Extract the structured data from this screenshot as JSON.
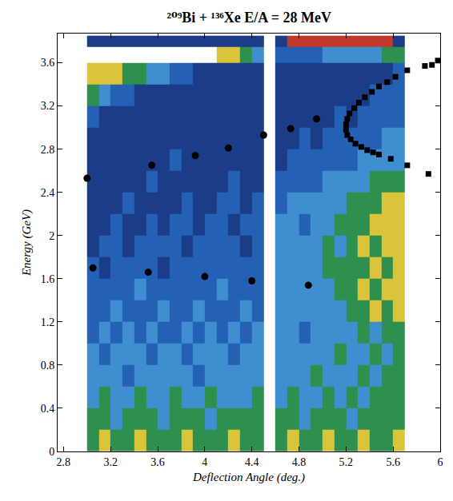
{
  "chart_data": {
    "type": "heatmap",
    "title": "²⁰⁹Bi + ¹³⁶Xe E/A = 28 MeV",
    "x_label": "Deflection Angle (deg.)",
    "y_label": "Energy (GeV)",
    "x": [
      3.05,
      3.15,
      3.25,
      3.35,
      3.45,
      3.55,
      3.65,
      3.75,
      3.85,
      3.95,
      4.05,
      4.15,
      4.25,
      4.35,
      4.45,
      4.55,
      4.65,
      4.75,
      4.85,
      4.95,
      5.05,
      5.15,
      5.25,
      5.35,
      5.45,
      5.55,
      5.65
    ],
    "y": [
      0.1,
      0.3,
      0.5,
      0.7,
      0.9,
      1.1,
      1.3,
      1.5,
      1.7,
      1.9,
      2.1,
      2.3,
      2.5,
      2.7,
      2.9,
      3.1,
      3.3,
      3.5,
      3.7,
      3.8
    ],
    "z": [
      [
        2,
        1,
        2,
        2,
        1,
        2,
        2,
        2,
        1,
        2,
        2,
        2,
        1,
        2,
        2,
        null,
        2,
        1,
        2,
        2,
        1,
        2,
        2,
        1,
        2,
        2,
        1
      ],
      [
        2,
        2,
        3,
        2,
        2,
        2,
        3,
        2,
        2,
        2,
        3,
        2,
        2,
        2,
        2,
        null,
        2,
        2,
        3,
        2,
        2,
        2,
        3,
        2,
        2,
        2,
        2
      ],
      [
        3,
        2,
        3,
        3,
        2,
        3,
        3,
        2,
        3,
        3,
        2,
        3,
        3,
        3,
        2,
        null,
        3,
        2,
        3,
        3,
        2,
        3,
        2,
        3,
        2,
        2,
        2
      ],
      [
        3,
        3,
        3,
        4,
        3,
        3,
        3,
        3,
        3,
        4,
        3,
        3,
        3,
        3,
        3,
        null,
        3,
        3,
        3,
        2,
        3,
        3,
        3,
        2,
        3,
        2,
        2
      ],
      [
        3,
        4,
        3,
        3,
        3,
        4,
        3,
        3,
        4,
        3,
        3,
        3,
        4,
        3,
        3,
        null,
        3,
        3,
        3,
        3,
        3,
        2,
        3,
        3,
        2,
        3,
        2
      ],
      [
        4,
        3,
        4,
        3,
        4,
        3,
        4,
        4,
        3,
        4,
        3,
        4,
        3,
        4,
        3,
        null,
        3,
        3,
        4,
        3,
        3,
        3,
        3,
        2,
        3,
        2,
        2
      ],
      [
        4,
        4,
        3,
        4,
        4,
        4,
        3,
        4,
        4,
        3,
        4,
        4,
        4,
        3,
        4,
        null,
        3,
        3,
        3,
        3,
        3,
        3,
        2,
        2,
        1,
        2,
        1
      ],
      [
        4,
        4,
        4,
        4,
        3,
        4,
        4,
        4,
        4,
        4,
        4,
        3,
        4,
        4,
        4,
        null,
        3,
        3,
        3,
        3,
        3,
        2,
        2,
        1,
        2,
        1,
        1
      ],
      [
        4,
        5,
        4,
        4,
        4,
        4,
        5,
        4,
        4,
        4,
        4,
        4,
        4,
        4,
        4,
        null,
        3,
        3,
        3,
        3,
        2,
        2,
        2,
        2,
        1,
        2,
        1
      ],
      [
        5,
        4,
        4,
        5,
        4,
        4,
        4,
        4,
        5,
        4,
        4,
        4,
        4,
        5,
        4,
        null,
        3,
        3,
        3,
        3,
        2,
        3,
        2,
        1,
        2,
        1,
        1
      ],
      [
        5,
        5,
        4,
        5,
        5,
        4,
        5,
        4,
        4,
        5,
        4,
        4,
        5,
        4,
        4,
        null,
        3,
        3,
        4,
        3,
        3,
        2,
        2,
        2,
        1,
        1,
        1
      ],
      [
        5,
        5,
        5,
        4,
        5,
        5,
        5,
        5,
        4,
        5,
        5,
        4,
        4,
        5,
        4,
        null,
        4,
        3,
        3,
        3,
        3,
        3,
        2,
        2,
        2,
        1,
        1
      ],
      [
        5,
        5,
        5,
        5,
        5,
        4,
        5,
        5,
        5,
        5,
        5,
        5,
        4,
        5,
        5,
        null,
        4,
        4,
        4,
        4,
        3,
        3,
        3,
        3,
        2,
        2,
        2
      ],
      [
        5,
        5,
        5,
        5,
        5,
        5,
        5,
        4,
        5,
        5,
        5,
        5,
        5,
        5,
        5,
        null,
        5,
        4,
        4,
        4,
        4,
        4,
        4,
        3,
        3,
        3,
        3
      ],
      [
        5,
        5,
        5,
        5,
        5,
        5,
        5,
        5,
        5,
        5,
        5,
        5,
        5,
        5,
        5,
        null,
        5,
        5,
        4,
        5,
        4,
        4,
        4,
        4,
        4,
        3,
        3
      ],
      [
        4,
        5,
        5,
        5,
        5,
        5,
        5,
        5,
        5,
        5,
        5,
        5,
        5,
        5,
        5,
        null,
        5,
        5,
        5,
        5,
        5,
        4,
        5,
        4,
        4,
        4,
        4
      ],
      [
        2,
        3,
        4,
        4,
        5,
        5,
        5,
        5,
        5,
        5,
        5,
        5,
        5,
        5,
        5,
        null,
        5,
        5,
        5,
        5,
        5,
        5,
        5,
        5,
        4,
        4,
        4
      ],
      [
        1,
        1,
        1,
        2,
        2,
        3,
        3,
        4,
        4,
        5,
        5,
        5,
        5,
        5,
        5,
        null,
        5,
        5,
        5,
        5,
        5,
        5,
        5,
        5,
        5,
        5,
        4
      ],
      [
        0,
        0,
        0,
        0,
        0,
        0,
        0,
        0,
        0,
        0,
        0,
        1,
        1,
        2,
        3,
        null,
        4,
        4,
        4,
        4,
        3,
        3,
        3,
        3,
        3,
        2,
        2
      ],
      [
        5,
        5,
        5,
        5,
        5,
        5,
        5,
        5,
        5,
        5,
        5,
        5,
        5,
        5,
        5,
        null,
        5,
        6,
        6,
        6,
        6,
        6,
        6,
        6,
        6,
        6,
        5
      ]
    ],
    "zlim": [
      0,
      6
    ],
    "colors": [
      "#ffffff",
      "#d9c43c",
      "#2f8f4e",
      "#3f8fd0",
      "#2461b4",
      "#1b3c86",
      "#c0392b"
    ],
    "xlim": [
      2.75,
      6
    ],
    "xticks": [
      2.8,
      3.2,
      3.6,
      4,
      4.4,
      4.8,
      5.2,
      5.6,
      6
    ],
    "ylim": [
      0,
      3.87
    ],
    "yticks": [
      0,
      0.4,
      0.8,
      1.2,
      1.6,
      2,
      2.4,
      2.8,
      3.2,
      3.6
    ],
    "grid": false,
    "series": [
      {
        "type": "scatter",
        "marker": "circle",
        "color": "#000000",
        "x": [
          3.0,
          3.55,
          3.92,
          4.2,
          4.5,
          4.73,
          4.95
        ],
        "values": [
          2.53,
          2.65,
          2.74,
          2.81,
          2.93,
          2.99,
          3.08
        ]
      },
      {
        "type": "scatter",
        "marker": "circle",
        "color": "#000000",
        "x": [
          3.05,
          3.52,
          4.0,
          4.4,
          4.88
        ],
        "values": [
          1.7,
          1.66,
          1.62,
          1.58,
          1.54
        ]
      },
      {
        "type": "scatter",
        "marker": "square",
        "color": "#000000",
        "x": [
          5.98,
          5.93,
          5.87,
          5.72,
          5.62,
          5.55,
          5.48,
          5.42,
          5.36,
          5.31,
          5.27,
          5.23,
          5.21,
          5.2,
          5.2,
          5.21,
          5.24,
          5.28,
          5.33,
          5.38,
          5.43,
          5.48,
          5.58,
          5.72,
          5.9
        ],
        "values": [
          3.62,
          3.58,
          3.57,
          3.53,
          3.47,
          3.42,
          3.38,
          3.33,
          3.28,
          3.23,
          3.18,
          3.13,
          3.08,
          3.03,
          2.98,
          2.93,
          2.89,
          2.85,
          2.82,
          2.79,
          2.77,
          2.75,
          2.71,
          2.65,
          2.57
        ]
      }
    ]
  }
}
